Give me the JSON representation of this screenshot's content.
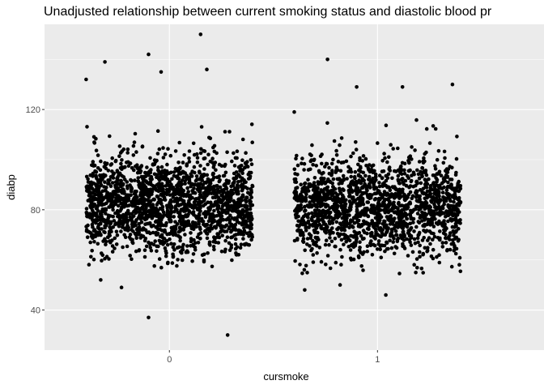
{
  "chart_data": {
    "type": "scatter",
    "title": "Unadjusted relationship between current smoking status and diastolic blood pr",
    "xlabel": "cursmoke",
    "ylabel": "diabp",
    "categories": [
      "0",
      "1"
    ],
    "y_ticks": [
      40,
      80,
      120
    ],
    "ylim": [
      24,
      154
    ],
    "jitter": "horizontal, approx ±0.4 around each category",
    "grid": true,
    "background": "#ebebeb",
    "point_color": "#000000",
    "series": [
      {
        "category": "0",
        "highlighted_points": [
          {
            "x_offset": -0.1,
            "y": 142
          },
          {
            "x_offset": 0.15,
            "y": 150
          },
          {
            "x_offset": -0.4,
            "y": 132
          },
          {
            "x_offset": -0.31,
            "y": 139
          },
          {
            "x_offset": 0.18,
            "y": 136
          },
          {
            "x_offset": -0.04,
            "y": 135
          },
          {
            "x_offset": -0.1,
            "y": 37
          },
          {
            "x_offset": 0.28,
            "y": 30
          },
          {
            "x_offset": -0.33,
            "y": 52
          },
          {
            "x_offset": -0.23,
            "y": 49
          }
        ],
        "bulk": {
          "n": 1900,
          "range": [
            60,
            112
          ],
          "mean": 82,
          "sd": 10
        }
      },
      {
        "category": "1",
        "highlighted_points": [
          {
            "x_offset": -0.24,
            "y": 140
          },
          {
            "x_offset": -0.1,
            "y": 129
          },
          {
            "x_offset": 0.12,
            "y": 129
          },
          {
            "x_offset": 0.36,
            "y": 130
          },
          {
            "x_offset": -0.4,
            "y": 119
          },
          {
            "x_offset": 0.04,
            "y": 46
          },
          {
            "x_offset": -0.35,
            "y": 48
          },
          {
            "x_offset": -0.18,
            "y": 50
          }
        ],
        "bulk": {
          "n": 1700,
          "range": [
            58,
            110
          ],
          "mean": 81,
          "sd": 10
        }
      }
    ]
  }
}
